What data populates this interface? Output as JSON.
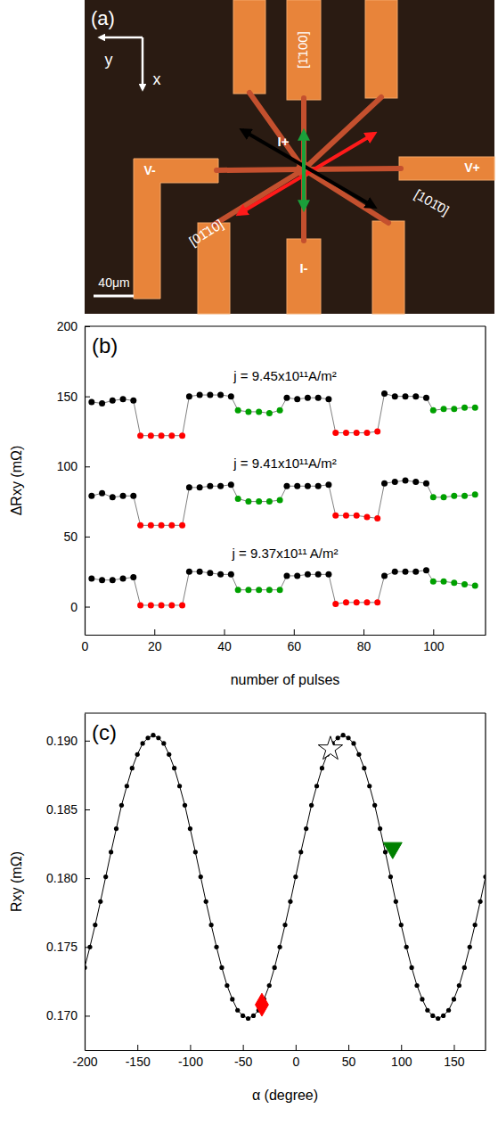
{
  "diagram": {
    "panel_label": "(a)",
    "axis_labels": {
      "x": "x",
      "y": "y"
    },
    "directions": {
      "vertical": "[1̄100]",
      "red_arrow": "[01̄10]",
      "black_arrow": "[101̄0]"
    },
    "contacts": {
      "current_plus": "I+",
      "current_minus": "I-",
      "voltage_minus": "V-",
      "voltage_plus": "V+"
    },
    "scale_bar": "40μm"
  },
  "chart_data": [
    {
      "type": "line",
      "title": "(b)",
      "x_label": "number of pulses",
      "y_label": "ΔRxy (mΩ)",
      "marker": "circle",
      "line_style": "solid",
      "x": [
        2,
        5,
        8,
        11,
        14,
        16,
        19,
        22,
        25,
        28,
        30,
        33,
        36,
        39,
        42,
        44,
        47,
        50,
        53,
        56,
        58,
        61,
        64,
        67,
        70,
        72,
        75,
        78,
        81,
        84,
        86,
        89,
        92,
        95,
        98,
        100,
        103,
        106,
        109,
        112
      ],
      "xlim": [
        0,
        115
      ],
      "xticks": [
        0,
        20,
        40,
        60,
        80,
        100
      ],
      "ylim": [
        -20,
        200
      ],
      "yticks": [
        0,
        50,
        100,
        150,
        200
      ],
      "series": [
        {
          "annotation": "j = 9.45x10¹¹A/m²",
          "color": "#7f7f7f",
          "colors": [
            "#000000",
            "#000000",
            "#000000",
            "#000000",
            "#000000",
            "#ff0000",
            "#ff0000",
            "#ff0000",
            "#ff0000",
            "#ff0000",
            "#000000",
            "#000000",
            "#000000",
            "#000000",
            "#000000",
            "#00a000",
            "#00a000",
            "#00a000",
            "#00a000",
            "#00a000",
            "#000000",
            "#000000",
            "#000000",
            "#000000",
            "#000000",
            "#ff0000",
            "#ff0000",
            "#ff0000",
            "#ff0000",
            "#ff0000",
            "#000000",
            "#000000",
            "#000000",
            "#000000",
            "#000000",
            "#00a000",
            "#00a000",
            "#00a000",
            "#00a000",
            "#00a000"
          ],
          "values": [
            146,
            145,
            147,
            148,
            147,
            122,
            122,
            122,
            122,
            122,
            150,
            151,
            151,
            151,
            150,
            140,
            139,
            139,
            138,
            140,
            149,
            148,
            149,
            149,
            148,
            124,
            124,
            124,
            124,
            125,
            152,
            150,
            150,
            150,
            149,
            140,
            141,
            141,
            142,
            142
          ]
        },
        {
          "annotation": "j = 9.41x10¹¹A/m²",
          "color": "#7f7f7f",
          "colors": [
            "#000000",
            "#000000",
            "#000000",
            "#000000",
            "#000000",
            "#ff0000",
            "#ff0000",
            "#ff0000",
            "#ff0000",
            "#ff0000",
            "#000000",
            "#000000",
            "#000000",
            "#000000",
            "#000000",
            "#00a000",
            "#00a000",
            "#00a000",
            "#00a000",
            "#00a000",
            "#000000",
            "#000000",
            "#000000",
            "#000000",
            "#000000",
            "#ff0000",
            "#ff0000",
            "#ff0000",
            "#ff0000",
            "#ff0000",
            "#000000",
            "#000000",
            "#000000",
            "#000000",
            "#000000",
            "#00a000",
            "#00a000",
            "#00a000",
            "#00a000",
            "#00a000"
          ],
          "values": [
            79,
            81,
            78,
            79,
            79,
            58,
            58,
            58,
            58,
            58,
            85,
            85,
            86,
            86,
            87,
            77,
            75,
            75,
            75,
            76,
            86,
            86,
            86,
            86,
            87,
            65,
            65,
            65,
            64,
            63,
            88,
            89,
            90,
            89,
            88,
            78,
            78,
            79,
            79,
            80
          ]
        },
        {
          "annotation": "j = 9.37x10¹¹ A/m²",
          "color": "#7f7f7f",
          "colors": [
            "#000000",
            "#000000",
            "#000000",
            "#000000",
            "#000000",
            "#ff0000",
            "#ff0000",
            "#ff0000",
            "#ff0000",
            "#ff0000",
            "#000000",
            "#000000",
            "#000000",
            "#000000",
            "#000000",
            "#00a000",
            "#00a000",
            "#00a000",
            "#00a000",
            "#00a000",
            "#000000",
            "#000000",
            "#000000",
            "#000000",
            "#000000",
            "#ff0000",
            "#ff0000",
            "#ff0000",
            "#ff0000",
            "#ff0000",
            "#000000",
            "#000000",
            "#000000",
            "#000000",
            "#000000",
            "#00a000",
            "#00a000",
            "#00a000",
            "#00a000",
            "#00a000"
          ],
          "values": [
            20,
            19,
            19,
            20,
            21,
            1,
            1,
            1,
            1,
            1,
            25,
            25,
            24,
            23,
            23,
            12,
            12,
            12,
            12,
            12,
            22,
            22,
            23,
            23,
            23,
            2,
            3,
            3,
            3,
            3,
            22,
            25,
            25,
            25,
            26,
            18,
            18,
            17,
            16,
            15
          ]
        }
      ]
    },
    {
      "type": "line",
      "title": "(c)",
      "x_label": "α (degree)",
      "y_label": "Rxy (mΩ)",
      "x": [
        -200,
        -195,
        -190,
        -185,
        -180,
        -175,
        -170,
        -165,
        -160,
        -155,
        -150,
        -145,
        -140,
        -135,
        -130,
        -125,
        -120,
        -115,
        -110,
        -105,
        -100,
        -95,
        -90,
        -85,
        -80,
        -75,
        -70,
        -65,
        -60,
        -55,
        -50,
        -45,
        -40,
        -35,
        -30,
        -25,
        -20,
        -15,
        -10,
        -5,
        0,
        5,
        10,
        15,
        20,
        25,
        30,
        35,
        40,
        45,
        50,
        55,
        60,
        65,
        70,
        75,
        80,
        85,
        90,
        95,
        100,
        105,
        110,
        115,
        120,
        125,
        130,
        135,
        140,
        145,
        150,
        155,
        160,
        165,
        170,
        175,
        180
      ],
      "xlim": [
        -200,
        180
      ],
      "xticks": [
        -200,
        -150,
        -100,
        -50,
        0,
        50,
        100,
        150
      ],
      "ylim": [
        0.1675,
        0.192
      ],
      "yticks": [
        {
          "value": 0.17,
          "label": "0.170"
        },
        0.175,
        {
          "value": 0.18,
          "label": "0.180"
        },
        0.185,
        {
          "value": 0.19,
          "label": "0.190"
        }
      ],
      "series": [
        {
          "type": "line",
          "color": "#000000",
          "marker": "circle",
          "line_style": "solid",
          "values": [
            0.1735,
            0.175,
            0.1766,
            0.1783,
            0.1801,
            0.1819,
            0.1836,
            0.1853,
            0.1867,
            0.188,
            0.189,
            0.1898,
            0.1902,
            0.1904,
            0.1902,
            0.1898,
            0.189,
            0.188,
            0.1867,
            0.1853,
            0.1836,
            0.1819,
            0.1801,
            0.1783,
            0.1766,
            0.175,
            0.1735,
            0.1722,
            0.1712,
            0.1704,
            0.17,
            0.1698,
            0.17,
            0.1704,
            0.1712,
            0.1722,
            0.1735,
            0.175,
            0.1766,
            0.1783,
            0.1801,
            0.1819,
            0.1836,
            0.1853,
            0.1867,
            0.188,
            0.189,
            0.1898,
            0.1902,
            0.1904,
            0.1902,
            0.1898,
            0.189,
            0.188,
            0.1867,
            0.1853,
            0.1836,
            0.1819,
            0.1801,
            0.1783,
            0.1766,
            0.175,
            0.1735,
            0.1722,
            0.1712,
            0.1704,
            0.17,
            0.1698,
            0.17,
            0.1704,
            0.1712,
            0.1722,
            0.1735,
            0.175,
            0.1766,
            0.1783,
            0.1801
          ]
        },
        {
          "type": "scatter",
          "marker": "star",
          "color": "#ffffff",
          "x": [
            33
          ],
          "values": [
            0.1894
          ]
        },
        {
          "type": "scatter",
          "marker": "diamond",
          "color": "#ff0000",
          "x": [
            -32
          ],
          "values": [
            0.1708
          ]
        },
        {
          "type": "scatter",
          "marker": "triangle-down",
          "color": "#008000",
          "x": [
            92
          ],
          "values": [
            0.1822
          ]
        }
      ]
    }
  ]
}
